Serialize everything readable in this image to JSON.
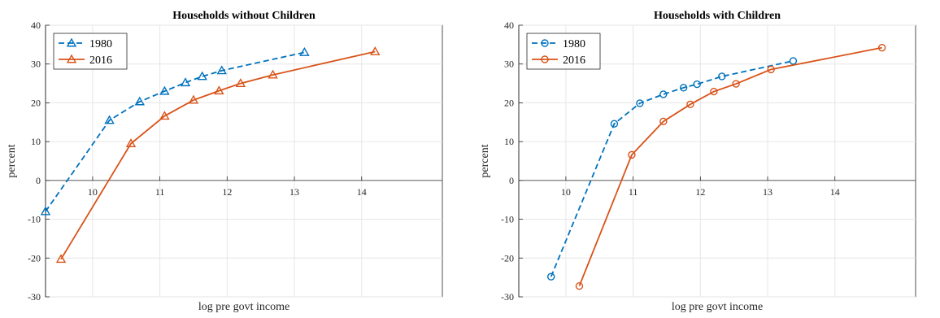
{
  "colors": {
    "s1980": "#0072BD",
    "s2016": "#D95319",
    "grid": "#e6e6e6",
    "axis": "#262626"
  },
  "chart_data": [
    {
      "type": "line",
      "title": "Households without Children",
      "xlabel": "log pre govt income",
      "ylabel": "percent",
      "xlim": [
        9.3,
        15.2
      ],
      "ylim": [
        -30,
        40
      ],
      "xticks": [
        "10",
        "11",
        "12",
        "13",
        "14"
      ],
      "yticks": [
        "-30",
        "-20",
        "-10",
        "0",
        "10",
        "20",
        "30",
        "40"
      ],
      "grid": true,
      "legend": "top-left",
      "series": [
        {
          "name": "1980",
          "marker": "triangle",
          "dashed": true,
          "x": [
            9.3,
            10.25,
            10.7,
            11.07,
            11.38,
            11.63,
            11.92,
            13.15
          ],
          "y": [
            -8,
            15.5,
            20.3,
            23,
            25.2,
            26.8,
            28.3,
            33
          ]
        },
        {
          "name": "2016",
          "marker": "triangle",
          "dashed": false,
          "x": [
            9.53,
            10.57,
            11.07,
            11.5,
            11.88,
            12.2,
            12.68,
            14.2
          ],
          "y": [
            -20.3,
            9.5,
            16.6,
            20.7,
            23.1,
            25,
            27.2,
            33.2
          ]
        }
      ]
    },
    {
      "type": "line",
      "title": "Households with Children",
      "xlabel": "log pre govt income",
      "ylabel": "percent",
      "xlim": [
        9.3,
        15.2
      ],
      "ylim": [
        -30,
        40
      ],
      "xticks": [
        "10",
        "11",
        "12",
        "13",
        "14"
      ],
      "yticks": [
        "-30",
        "-20",
        "-10",
        "0",
        "10",
        "20",
        "30",
        "40"
      ],
      "grid": true,
      "legend": "top-left",
      "series": [
        {
          "name": "1980",
          "marker": "circle",
          "dashed": true,
          "x": [
            9.78,
            10.72,
            11.1,
            11.45,
            11.75,
            11.95,
            12.32,
            13.38
          ],
          "y": [
            -24.8,
            14.6,
            19.9,
            22.2,
            23.9,
            24.8,
            26.8,
            30.8
          ]
        },
        {
          "name": "2016",
          "marker": "circle",
          "dashed": false,
          "x": [
            10.2,
            10.98,
            11.45,
            11.85,
            12.2,
            12.53,
            13.05,
            14.7
          ],
          "y": [
            -27.2,
            6.6,
            15.2,
            19.6,
            22.9,
            24.9,
            28.6,
            34.2
          ]
        }
      ]
    }
  ]
}
